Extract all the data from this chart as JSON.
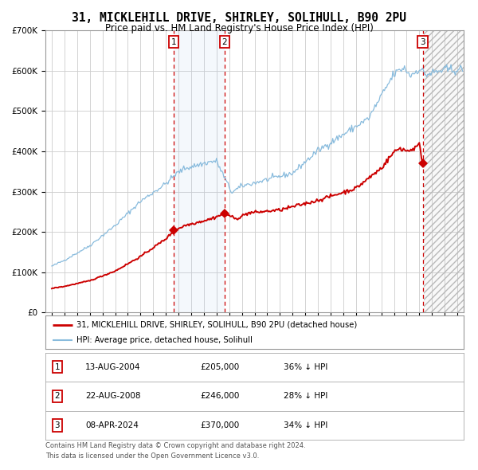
{
  "title1": "31, MICKLEHILL DRIVE, SHIRLEY, SOLIHULL, B90 2PU",
  "title2": "Price paid vs. HM Land Registry's House Price Index (HPI)",
  "title1_fontsize": 10.5,
  "title2_fontsize": 8.5,
  "hpi_color": "#88bbdd",
  "price_color": "#cc0000",
  "marker_color": "#cc0000",
  "grid_color": "#cccccc",
  "bg_color": "#ffffff",
  "transactions": [
    {
      "date": 2004.616,
      "price": 205000,
      "label": "1"
    },
    {
      "date": 2008.641,
      "price": 246000,
      "label": "2"
    },
    {
      "date": 2024.274,
      "price": 370000,
      "label": "3"
    }
  ],
  "shade_start": 2004.616,
  "shade_end": 2008.641,
  "future_start": 2024.33,
  "xlim_min": 1994.5,
  "xlim_max": 2027.5,
  "ylim_min": 0,
  "ylim_max": 700000,
  "legend_entries": [
    "31, MICKLEHILL DRIVE, SHIRLEY, SOLIHULL, B90 2PU (detached house)",
    "HPI: Average price, detached house, Solihull"
  ],
  "table_rows": [
    {
      "num": "1",
      "date": "13-AUG-2004",
      "price": "£205,000",
      "note": "36% ↓ HPI"
    },
    {
      "num": "2",
      "date": "22-AUG-2008",
      "price": "£246,000",
      "note": "28% ↓ HPI"
    },
    {
      "num": "3",
      "date": "08-APR-2024",
      "price": "£370,000",
      "note": "34% ↓ HPI"
    }
  ],
  "footnote1": "Contains HM Land Registry data © Crown copyright and database right 2024.",
  "footnote2": "This data is licensed under the Open Government Licence v3.0."
}
